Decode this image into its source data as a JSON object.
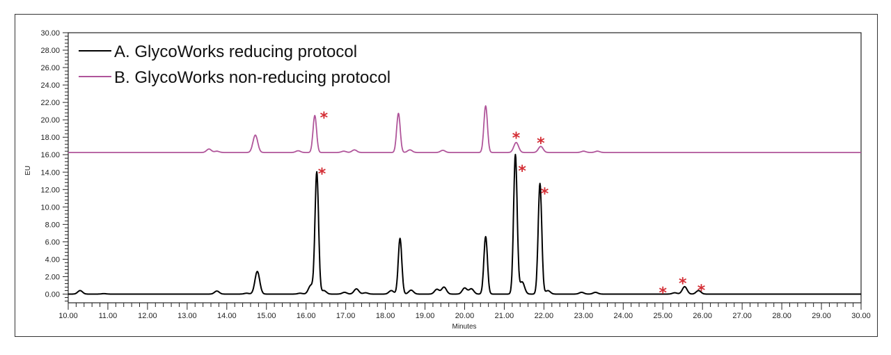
{
  "chart_data": {
    "type": "line",
    "title": "",
    "xlabel": "Minutes",
    "ylabel": "EU",
    "xlim": [
      10,
      30
    ],
    "ylim": [
      -1,
      30
    ],
    "x_ticks": [
      "10.00",
      "11.00",
      "12.00",
      "13.00",
      "14.00",
      "15.00",
      "16.00",
      "17.00",
      "18.00",
      "19.00",
      "20.00",
      "21.00",
      "22.00",
      "23.00",
      "24.00",
      "25.00",
      "26.00",
      "27.00",
      "28.00",
      "29.00",
      "30.00"
    ],
    "y_ticks": [
      "0.00",
      "2.00",
      "4.00",
      "6.00",
      "8.00",
      "10.00",
      "12.00",
      "14.00",
      "16.00",
      "18.00",
      "20.00",
      "22.00",
      "24.00",
      "26.00",
      "28.00",
      "30.00"
    ],
    "grid": false,
    "legend_position": "top-left",
    "series": [
      {
        "name": "A. GlycoWorks reducing protocol",
        "color": "#000000",
        "baseline": 0,
        "peaks": [
          {
            "x": 10.3,
            "y": 0.4
          },
          {
            "x": 10.9,
            "y": 0.05
          },
          {
            "x": 13.75,
            "y": 0.35
          },
          {
            "x": 14.5,
            "y": 0.1
          },
          {
            "x": 14.77,
            "y": 2.6
          },
          {
            "x": 15.85,
            "y": 0.1
          },
          {
            "x": 16.12,
            "y": 1.0
          },
          {
            "x": 16.27,
            "y": 14.0
          },
          {
            "x": 16.45,
            "y": 0.4
          },
          {
            "x": 16.97,
            "y": 0.2
          },
          {
            "x": 17.27,
            "y": 0.6
          },
          {
            "x": 17.5,
            "y": 0.15
          },
          {
            "x": 18.15,
            "y": 0.4
          },
          {
            "x": 18.37,
            "y": 6.4
          },
          {
            "x": 18.65,
            "y": 0.45
          },
          {
            "x": 19.3,
            "y": 0.55
          },
          {
            "x": 19.48,
            "y": 0.8
          },
          {
            "x": 20.0,
            "y": 0.7
          },
          {
            "x": 20.17,
            "y": 0.6
          },
          {
            "x": 20.53,
            "y": 6.6
          },
          {
            "x": 21.28,
            "y": 16.0
          },
          {
            "x": 21.45,
            "y": 1.4
          },
          {
            "x": 21.9,
            "y": 12.7
          },
          {
            "x": 22.1,
            "y": 0.4
          },
          {
            "x": 22.95,
            "y": 0.2
          },
          {
            "x": 23.3,
            "y": 0.2
          },
          {
            "x": 25.3,
            "y": 0.15
          },
          {
            "x": 25.55,
            "y": 0.85
          },
          {
            "x": 25.9,
            "y": 0.4
          }
        ]
      },
      {
        "name": "B. GlycoWorks non-reducing protocol",
        "color": "#b0559a",
        "baseline": 16.25,
        "peaks": [
          {
            "x": 13.55,
            "y": 0.4
          },
          {
            "x": 13.75,
            "y": 0.15
          },
          {
            "x": 14.72,
            "y": 2.0
          },
          {
            "x": 15.8,
            "y": 0.2
          },
          {
            "x": 16.22,
            "y": 4.25
          },
          {
            "x": 16.95,
            "y": 0.15
          },
          {
            "x": 17.22,
            "y": 0.3
          },
          {
            "x": 18.33,
            "y": 4.5
          },
          {
            "x": 18.62,
            "y": 0.3
          },
          {
            "x": 19.45,
            "y": 0.25
          },
          {
            "x": 20.53,
            "y": 5.35
          },
          {
            "x": 21.3,
            "y": 1.15
          },
          {
            "x": 21.92,
            "y": 0.7
          },
          {
            "x": 23.0,
            "y": 0.15
          },
          {
            "x": 23.35,
            "y": 0.15
          }
        ]
      }
    ],
    "annotations": [
      {
        "text": "*",
        "x": 16.45,
        "y": 20.6
      },
      {
        "text": "*",
        "x": 16.4,
        "y": 14.2
      },
      {
        "text": "*",
        "x": 21.3,
        "y": 18.3
      },
      {
        "text": "*",
        "x": 21.92,
        "y": 17.7
      },
      {
        "text": "*",
        "x": 21.45,
        "y": 14.5
      },
      {
        "text": "*",
        "x": 22.02,
        "y": 11.9
      },
      {
        "text": "*",
        "x": 25.0,
        "y": 0.5
      },
      {
        "text": "*",
        "x": 25.5,
        "y": 1.6
      },
      {
        "text": "*",
        "x": 25.97,
        "y": 0.8
      }
    ]
  }
}
